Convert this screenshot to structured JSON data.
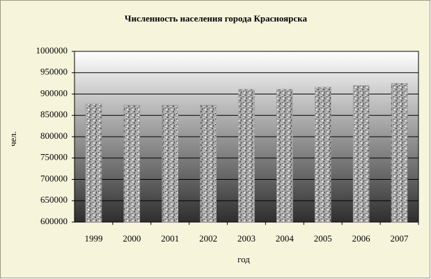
{
  "chart_data": {
    "type": "bar",
    "title": "Численность населения города Красноярска",
    "x_label": "год",
    "y_label": "чел.",
    "categories": [
      "1999",
      "2000",
      "2001",
      "2002",
      "2003",
      "2004",
      "2005",
      "2006",
      "2007"
    ],
    "values": [
      877000,
      874000,
      874000,
      874000,
      911000,
      911000,
      916000,
      920000,
      925000
    ],
    "color": "#9a9a9a",
    "ylim": [
      600000,
      1000000
    ],
    "yticks": [
      600000,
      650000,
      700000,
      750000,
      800000,
      850000,
      900000,
      950000,
      1000000
    ],
    "grid": true
  }
}
